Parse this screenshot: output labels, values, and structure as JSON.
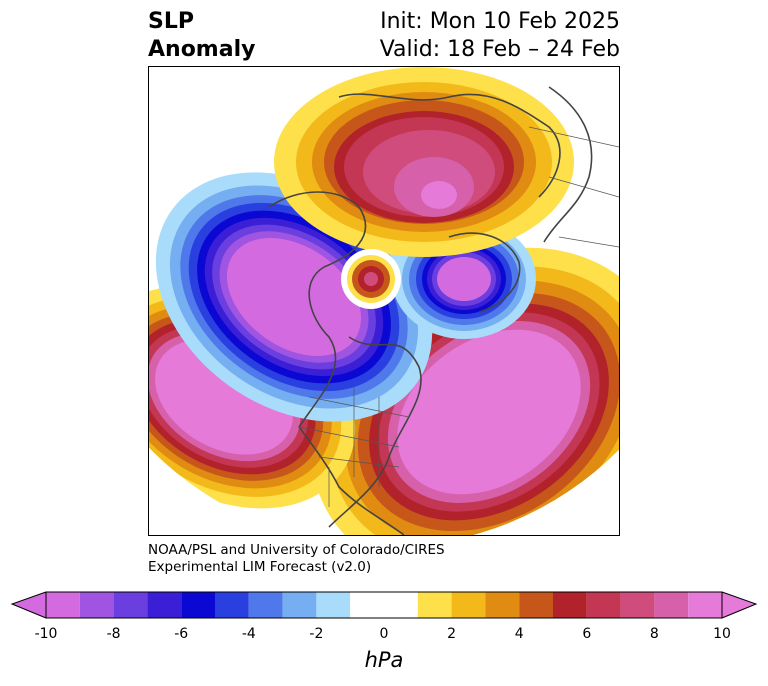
{
  "header": {
    "title_line1": "SLP",
    "title_line2": "Anomaly",
    "init": "Init: Mon 10 Feb 2025",
    "valid": "Valid: 18 Feb – 24 Feb"
  },
  "credit": {
    "line1": "NOAA/PSL and University of Colorado/CIRES",
    "line2": "Experimental LIM Forecast (v2.0)"
  },
  "colorbar": {
    "units": "hPa",
    "ticks": [
      "-10",
      "-8",
      "-6",
      "-4",
      "-2",
      "0",
      "2",
      "4",
      "6",
      "8",
      "10"
    ],
    "tick_values": [
      -10,
      -8,
      -6,
      -4,
      -2,
      0,
      2,
      4,
      6,
      8,
      10
    ],
    "bins": [
      -10,
      -9,
      -8,
      -7,
      -6,
      -5,
      -4,
      -3,
      -2,
      -1,
      1,
      2,
      3,
      4,
      5,
      6,
      7,
      8,
      9,
      10
    ],
    "colors": [
      "#d46ae0",
      "#9f55e2",
      "#6b3ee0",
      "#3a1fd6",
      "#0a08d2",
      "#2a3fe0",
      "#4f78ea",
      "#76aef2",
      "#a9dcfb",
      "#ffffff",
      "#fde04a",
      "#f3b91a",
      "#e08c12",
      "#c7561a",
      "#b2222b",
      "#c33754",
      "#cf4c7c",
      "#d760ab",
      "#e57ad8"
    ]
  },
  "map": {
    "type": "slp-anomaly-polar",
    "features": [
      {
        "name": "pacific-low",
        "sign": "negative"
      },
      {
        "name": "north-pacific-high",
        "sign": "positive"
      },
      {
        "name": "central-north-america-low",
        "sign": "negative"
      },
      {
        "name": "north-atlantic-high",
        "sign": "positive"
      },
      {
        "name": "barents-kara-high",
        "sign": "positive"
      },
      {
        "name": "greenland-iceland-low",
        "sign": "negative"
      },
      {
        "name": "arctic-small-high",
        "sign": "positive"
      }
    ]
  }
}
